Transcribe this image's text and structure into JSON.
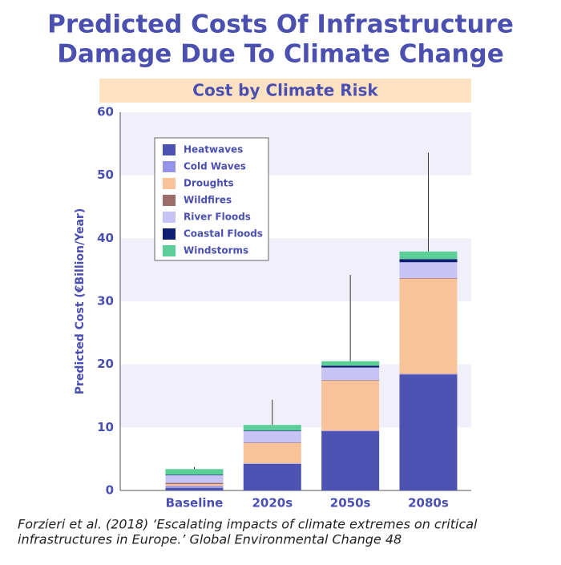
{
  "chart_data": {
    "type": "stacked_bar",
    "title": [
      "Predicted Costs Of Infrastructure",
      "Damage Due To Climate Change"
    ],
    "subtitle": "Cost by Climate Risk",
    "y_label": "Predicted Cost (€Billion/Year)",
    "categories": [
      "Baseline",
      "2020s",
      "2050s",
      "2080s"
    ],
    "series": [
      {
        "name": "Heatwaves",
        "color": "#4c53b3",
        "values": [
          0.4,
          4.2,
          9.4,
          18.4
        ]
      },
      {
        "name": "Cold Waves",
        "color": "#9393ea",
        "values": [
          0.3,
          0.1,
          0.1,
          0.1
        ]
      },
      {
        "name": "Droughts",
        "color": "#f9c39a",
        "values": [
          0.3,
          3.2,
          7.9,
          15.1
        ]
      },
      {
        "name": "Wildfires",
        "color": "#9e6b6b",
        "values": [
          0.2,
          0.1,
          0.1,
          0.1
        ]
      },
      {
        "name": "River Floods",
        "color": "#c7c3f5",
        "values": [
          1.2,
          1.8,
          2.0,
          2.5
        ]
      },
      {
        "name": "Coastal Floods",
        "color": "#0f1f73",
        "values": [
          0.1,
          0.1,
          0.3,
          0.5
        ]
      },
      {
        "name": "Windstorms",
        "color": "#5ccf98",
        "values": [
          0.9,
          0.9,
          0.7,
          1.2
        ]
      }
    ],
    "error_upper": [
      3.7,
      14.4,
      34.2,
      53.6
    ],
    "ylim": [
      0,
      60
    ],
    "yticks": [
      0,
      10,
      20,
      30,
      40,
      50,
      60
    ],
    "legend": "upper left",
    "source": [
      "Forzieri et al. (2018) ‘Escalating impacts of climate extremes on critical",
      "infrastructures in Europe.’ Global Environmental Change 48"
    ]
  }
}
